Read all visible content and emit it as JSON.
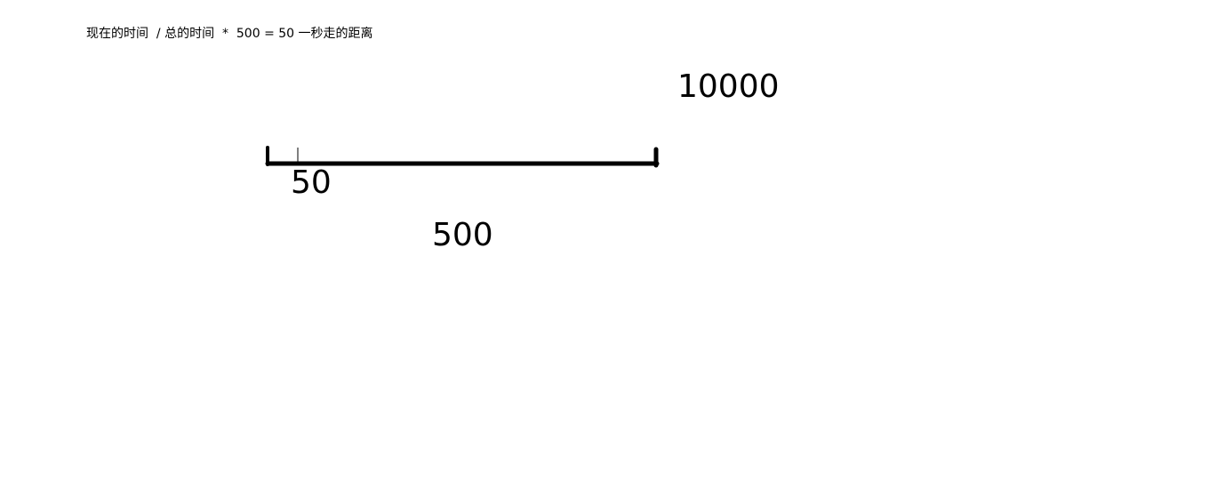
{
  "formula": {
    "part1": "现在的时间",
    "op_divide": "/",
    "part2": "总的时间",
    "op_multiply": "*",
    "tail": "500 = 50 一秒走的距离"
  },
  "labels": {
    "total_time": "10000",
    "step_distance": "50",
    "track_length": "500"
  },
  "colors": {
    "ink": "#000000",
    "background": "#ffffff"
  }
}
